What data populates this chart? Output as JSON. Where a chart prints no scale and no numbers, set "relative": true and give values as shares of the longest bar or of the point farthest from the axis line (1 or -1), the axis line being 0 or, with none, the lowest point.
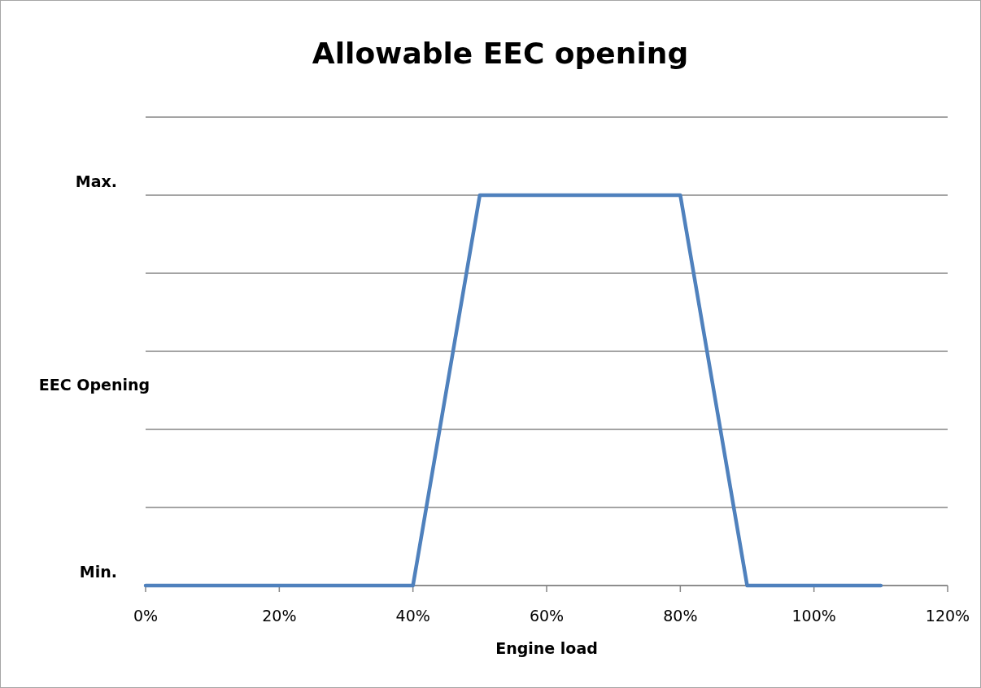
{
  "chart_data": {
    "type": "line",
    "title": "Allowable EEC opening",
    "xlabel": "Engine load",
    "ylabel": "EEC Opening",
    "x": [
      0,
      40,
      50,
      80,
      90,
      110
    ],
    "series": [
      {
        "color": "#4f81bd",
        "values": [
          0,
          0,
          1,
          1,
          0,
          0
        ]
      }
    ],
    "relative": true,
    "xlim": [
      0,
      120
    ],
    "xticks": [
      {
        "value": 0,
        "label": "0%"
      },
      {
        "value": 20,
        "label": "20%"
      },
      {
        "value": 40,
        "label": "40%"
      },
      {
        "value": 60,
        "label": "60%"
      },
      {
        "value": 80,
        "label": "80%"
      },
      {
        "value": 100,
        "label": "100%"
      },
      {
        "value": 120,
        "label": "120%"
      }
    ],
    "annotations": [
      "Min.",
      "Max."
    ],
    "grid": "y",
    "marker": "none",
    "line_style": "solid"
  }
}
